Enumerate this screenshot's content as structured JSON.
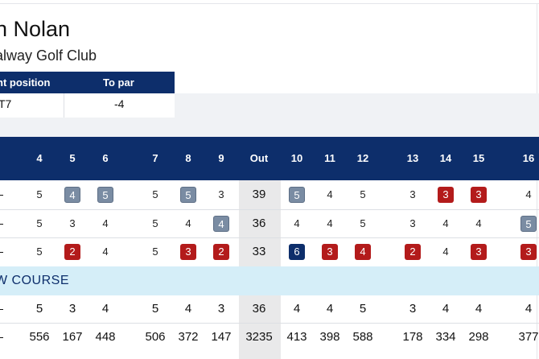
{
  "player": {
    "name": "n Nolan",
    "club": "alway Golf Club"
  },
  "position_table": {
    "headers": [
      "nt position",
      "To par"
    ],
    "values": [
      "T7",
      "-4"
    ]
  },
  "holes": [
    "4",
    "5",
    "6",
    "7",
    "8",
    "9",
    "Out",
    "10",
    "11",
    "12",
    "13",
    "14",
    "15",
    "16"
  ],
  "rounds": [
    [
      "5",
      "4",
      "5",
      "5",
      "5",
      "3",
      "39",
      "5",
      "4",
      "5",
      "3",
      "3",
      "3",
      "4"
    ],
    [
      "5",
      "3",
      "4",
      "5",
      "4",
      "4",
      "36",
      "4",
      "4",
      "5",
      "3",
      "4",
      "4",
      "5"
    ],
    [
      "5",
      "2",
      "4",
      "5",
      "3",
      "2",
      "33",
      "6",
      "3",
      "4",
      "2",
      "4",
      "3",
      "3"
    ]
  ],
  "course_label": "W COURSE",
  "par": [
    "5",
    "3",
    "4",
    "5",
    "4",
    "3",
    "36",
    "4",
    "4",
    "5",
    "3",
    "4",
    "4",
    "4"
  ],
  "yards": [
    "556",
    "167",
    "448",
    "506",
    "372",
    "147",
    "3235",
    "413",
    "398",
    "588",
    "178",
    "334",
    "298",
    "377"
  ],
  "colors": {
    "header_navy": "#0d2e6b",
    "bogey": "#7a8ca3",
    "birdie": "#b31b1b",
    "double": "#0d2e6b",
    "course_band": "#d5eef8"
  }
}
